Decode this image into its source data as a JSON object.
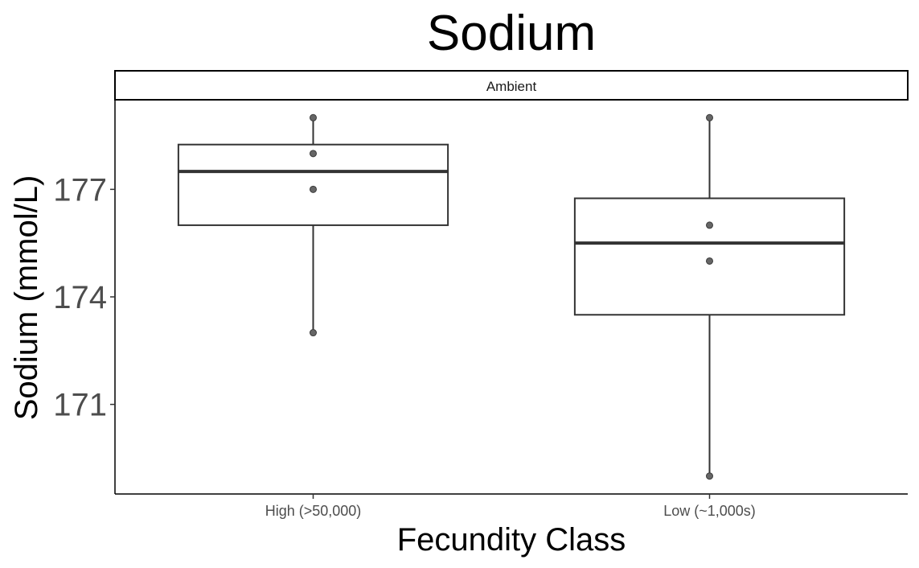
{
  "chart_data": {
    "type": "boxplot",
    "title": "Sodium",
    "facet": "Ambient",
    "xlabel": "Fecundity Class",
    "ylabel": "Sodium (mmol/L)",
    "categories": [
      "High (>50,000)",
      "Low (~1,000s)"
    ],
    "y_ticks": [
      171,
      174,
      177
    ],
    "ylim": [
      168.5,
      179.5
    ],
    "boxes": [
      {
        "category": "High (>50,000)",
        "whisker_low": 173,
        "q1": 176,
        "median": 177.5,
        "q3": 178.25,
        "whisker_high": 179
      },
      {
        "category": "Low (~1,000s)",
        "whisker_low": 169,
        "q1": 173.5,
        "median": 175.5,
        "q3": 176.75,
        "whisker_high": 179
      }
    ],
    "points": [
      {
        "category": "High (>50,000)",
        "values": [
          179,
          178,
          177,
          173
        ]
      },
      {
        "category": "Low (~1,000s)",
        "values": [
          179,
          176,
          175,
          169
        ]
      }
    ],
    "grid": false,
    "legend": "none"
  }
}
